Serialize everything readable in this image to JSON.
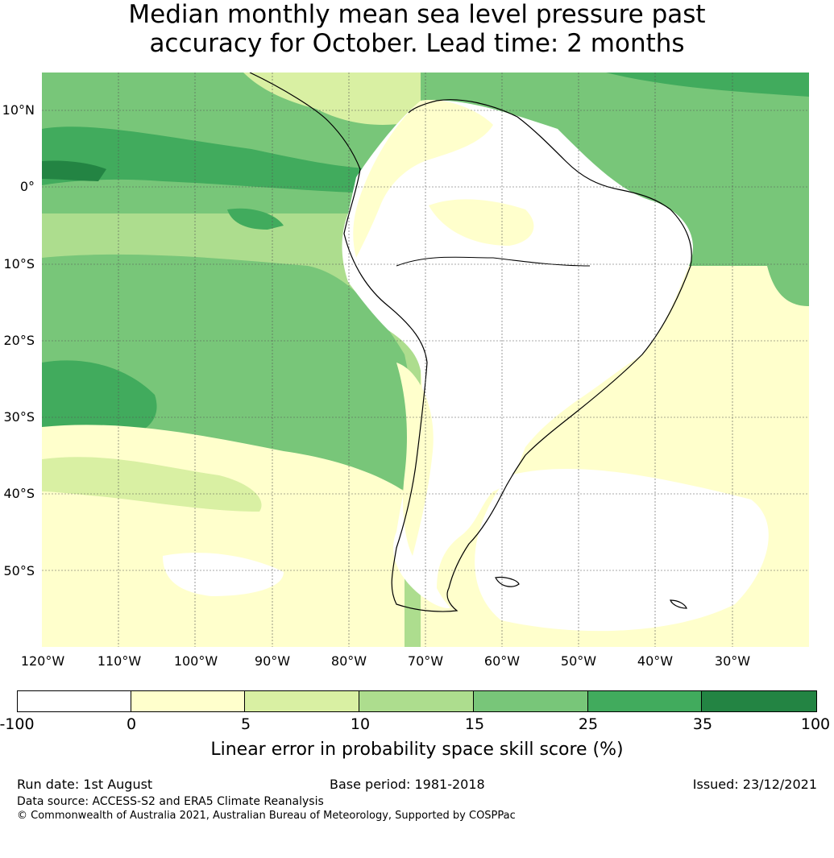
{
  "title": {
    "line1": "Median monthly mean sea level pressure past",
    "line2": "accuracy for October. Lead time: 2 months"
  },
  "map": {
    "lat_labels": [
      "10°N",
      "0°",
      "10°S",
      "20°S",
      "30°S",
      "40°S",
      "50°S"
    ],
    "lon_labels": [
      "120°W",
      "110°W",
      "100°W",
      "90°W",
      "80°W",
      "70°W",
      "60°W",
      "50°W",
      "40°W",
      "30°W"
    ],
    "colors": {
      "white": "#ffffff",
      "c0_5": "#ffffcc",
      "c5_10": "#d9f0a3",
      "c10_15": "#addd8e",
      "c15_25": "#78c679",
      "c25_35": "#41ab5d",
      "c35_100": "#238443",
      "coast": "#000000",
      "grid": "#555555"
    }
  },
  "colorbar": {
    "ticks": [
      "-100",
      "0",
      "5",
      "10",
      "15",
      "25",
      "35",
      "100"
    ],
    "segment_colors": [
      "#ffffff",
      "#ffffcc",
      "#d9f0a3",
      "#addd8e",
      "#78c679",
      "#41ab5d",
      "#238443"
    ],
    "label": "Linear error in probability space skill score (%)"
  },
  "footer": {
    "run_date": "Run date: 1st August",
    "base_period": "Base period: 1981-2018",
    "issued": "Issued: 23/12/2021",
    "data_source": "Data source: ACCESS-S2 and ERA5 Climate Reanalysis",
    "copyright": "© Commonwealth of Australia 2021, Australian Bureau of Meteorology, Supported by COSPPac"
  }
}
